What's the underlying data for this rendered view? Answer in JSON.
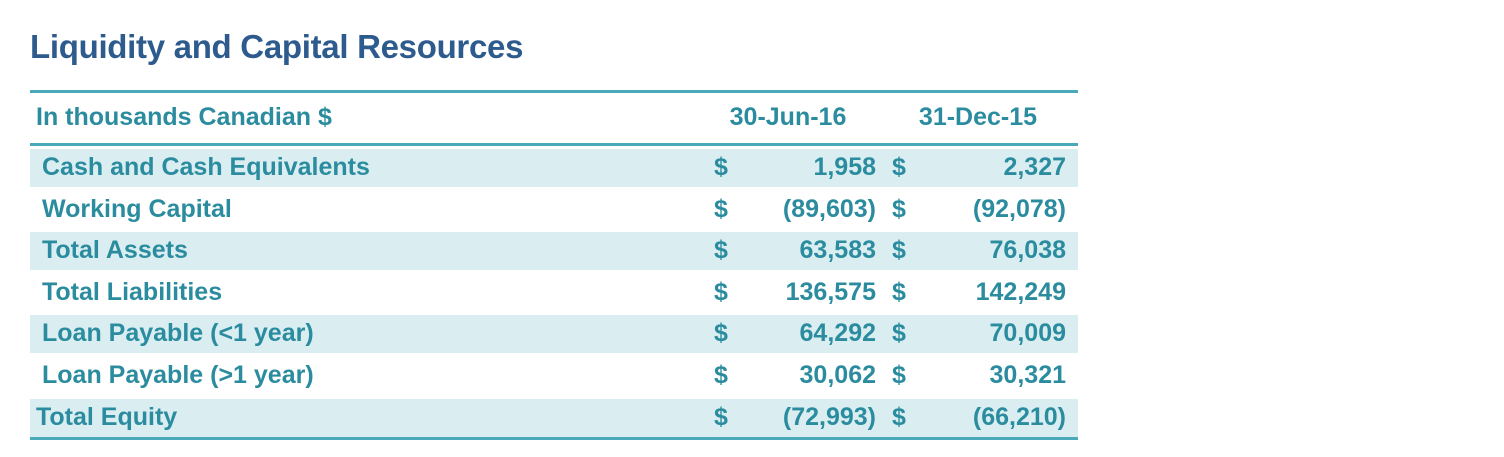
{
  "title": "Liquidity and Capital Resources",
  "table": {
    "caption": "In thousands Canadian $",
    "columns": [
      "30-Jun-16",
      "31-Dec-15"
    ],
    "rows": [
      {
        "label": "Cash and Cash Equivalents",
        "cur1": "$",
        "v1": "1,958",
        "cur2": "$",
        "v2": "2,327"
      },
      {
        "label": "Working Capital",
        "cur1": "$",
        "v1": "(89,603)",
        "cur2": "$",
        "v2": "(92,078)"
      },
      {
        "label": "Total Assets",
        "cur1": "$",
        "v1": "63,583",
        "cur2": "$",
        "v2": "76,038"
      },
      {
        "label": "Total Liabilities",
        "cur1": "$",
        "v1": "136,575",
        "cur2": "$",
        "v2": "142,249"
      },
      {
        "label": "Loan Payable (<1 year)",
        "cur1": "$",
        "v1": "64,292",
        "cur2": "$",
        "v2": "70,009"
      },
      {
        "label": "Loan Payable (>1 year)",
        "cur1": "$",
        "v1": "30,062",
        "cur2": "$",
        "v2": "30,321"
      },
      {
        "label": "Total Equity",
        "cur1": "$",
        "v1": "(72,993)",
        "cur2": "$",
        "v2": "(66,210)"
      }
    ]
  },
  "colors": {
    "title": "#2e5b8d",
    "text": "#2a8c9e",
    "rule": "#4aaab9",
    "shade": "#daeef2"
  }
}
